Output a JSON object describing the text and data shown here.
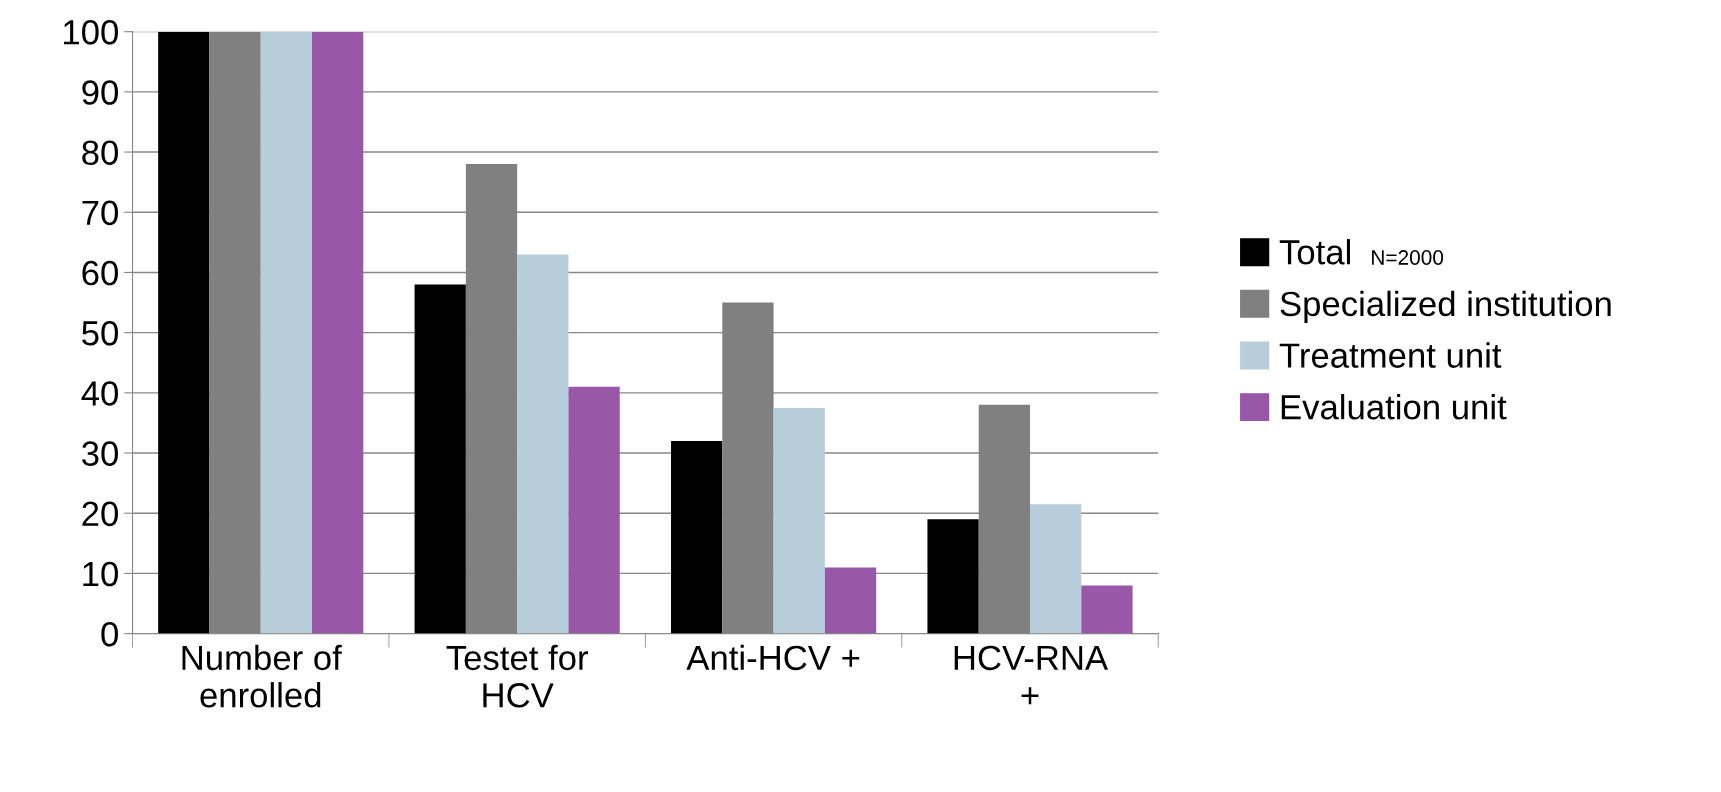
{
  "chart_data": {
    "type": "bar",
    "categories": [
      "Number of\nenrolled",
      "Testet for\nHCV",
      "Anti-HCV +",
      "HCV-RNA\n+"
    ],
    "series": [
      {
        "name": "Total",
        "color": "#000000",
        "values": [
          100,
          58,
          32,
          19
        ]
      },
      {
        "name": "Specialized institution",
        "color": "#808080",
        "values": [
          100,
          78,
          55,
          38
        ]
      },
      {
        "name": "Treatment unit",
        "color": "#b7cdd9",
        "values": [
          100,
          63,
          37.5,
          21.5
        ]
      },
      {
        "name": "Evaluation unit",
        "color": "#9857a7",
        "values": [
          100,
          41,
          11,
          8
        ]
      }
    ],
    "annotations": [
      "N=2000"
    ],
    "ylim": [
      0,
      100
    ],
    "yticks": [
      0,
      10,
      20,
      30,
      40,
      50,
      60,
      70,
      80,
      90,
      100
    ],
    "grid": "y",
    "legend": "right"
  }
}
